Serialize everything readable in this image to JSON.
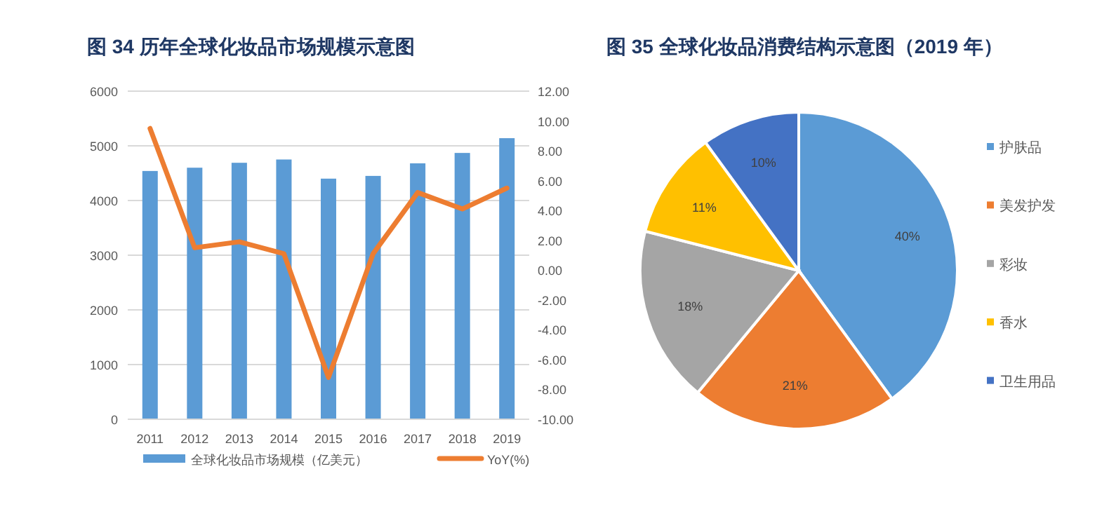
{
  "chart_data": [
    {
      "type": "bar",
      "title": "图 34 历年全球化妆品市场规模示意图",
      "categories": [
        "2011",
        "2012",
        "2013",
        "2014",
        "2015",
        "2016",
        "2017",
        "2018",
        "2019"
      ],
      "series": [
        {
          "name": "全球化妆品市场规模（亿美元）",
          "type": "bar",
          "color": "#5b9bd5",
          "values": [
            4540,
            4600,
            4690,
            4750,
            4400,
            4450,
            4680,
            4870,
            5140
          ]
        },
        {
          "name": "YoY(%)",
          "type": "line",
          "axis": "y2",
          "color": "#ed7d31",
          "values": [
            9.5,
            1.5,
            1.9,
            1.1,
            -7.2,
            1.1,
            5.2,
            4.1,
            5.5
          ]
        }
      ],
      "ylim": [
        0,
        6000
      ],
      "yticks": [
        0,
        1000,
        2000,
        3000,
        4000,
        5000,
        6000
      ],
      "y2lim": [
        -10,
        12
      ],
      "y2ticks": [
        {
          "value": -10,
          "label": "-10.00"
        },
        {
          "value": -8,
          "label": "-8.00"
        },
        {
          "value": -6,
          "label": "-6.00"
        },
        {
          "value": -4,
          "label": "-4.00"
        },
        {
          "value": -2,
          "label": "-2.00"
        },
        {
          "value": 0,
          "label": "0.00"
        },
        {
          "value": 2,
          "label": "2.00"
        },
        {
          "value": 4,
          "label": "4.00"
        },
        {
          "value": 6,
          "label": "6.00"
        },
        {
          "value": 8,
          "label": "8.00"
        },
        {
          "value": 10,
          "label": "10.00"
        },
        {
          "value": 12,
          "label": "12.00"
        }
      ],
      "grid": "y",
      "legend": "bottom",
      "marker": "none"
    },
    {
      "type": "pie",
      "title": "图 35 全球化妆品消费结构示意图（2019 年）",
      "categories": [
        "护肤品",
        "美发护发",
        "彩妆",
        "香水",
        "卫生用品"
      ],
      "values": [
        40,
        21,
        18,
        11,
        10
      ],
      "colors": [
        "#5b9bd5",
        "#ed7d31",
        "#a5a5a5",
        "#ffc000",
        "#4472c4"
      ],
      "value_labels": [
        "40%",
        "21%",
        "18%",
        "11%",
        "10%"
      ],
      "legend": "right"
    }
  ]
}
